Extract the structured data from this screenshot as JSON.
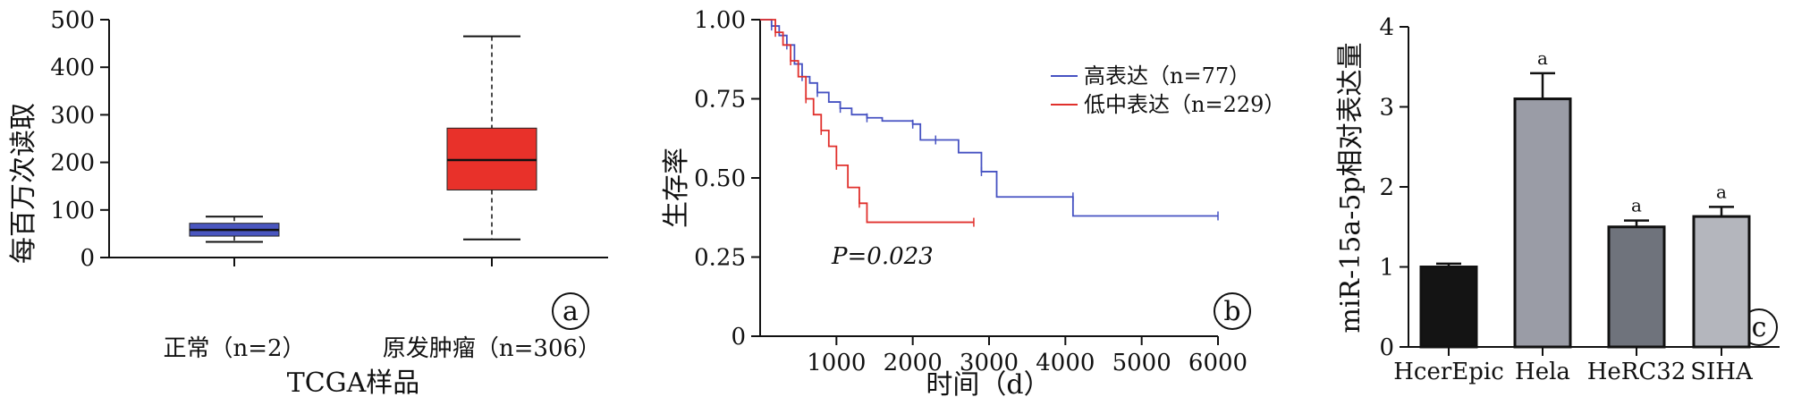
{
  "chart_data": [
    {
      "type": "box",
      "panel_label": "a",
      "ylabel": "每百万次读取",
      "xlabel": "TCGA样品",
      "ylim": [
        0,
        500
      ],
      "yticks": [
        0,
        100,
        200,
        300,
        400,
        500
      ],
      "categories": [
        "正常（n=2）",
        "原发肿瘤（n=306）"
      ],
      "boxes": [
        {
          "name": "正常（n=2）",
          "min": 33,
          "q1": 45,
          "median": 58,
          "q3": 72,
          "max": 86,
          "color": "#4a56c0"
        },
        {
          "name": "原发肿瘤（n=306）",
          "min": 38,
          "q1": 142,
          "median": 205,
          "q3": 272,
          "max": 465,
          "color": "#e8312a"
        }
      ]
    },
    {
      "type": "line",
      "subtype": "kaplan-meier",
      "panel_label": "b",
      "ylabel": "生存率",
      "xlabel": "时间（d）",
      "xlim": [
        0,
        6000
      ],
      "ylim": [
        0,
        1.0
      ],
      "xticks": [
        1000,
        2000,
        3000,
        4000,
        5000,
        6000
      ],
      "yticks": [
        "0",
        "0.25",
        "0.50",
        "0.75",
        "1.00"
      ],
      "annotation": "P=0.023",
      "legend_position": "top-right",
      "series": [
        {
          "name": "高表达（n=77）",
          "color": "#4652c2",
          "points": [
            [
              0,
              1.0
            ],
            [
              150,
              0.98
            ],
            [
              250,
              0.95
            ],
            [
              350,
              0.92
            ],
            [
              450,
              0.86
            ],
            [
              550,
              0.82
            ],
            [
              650,
              0.8
            ],
            [
              750,
              0.77
            ],
            [
              900,
              0.74
            ],
            [
              1050,
              0.72
            ],
            [
              1200,
              0.7
            ],
            [
              1400,
              0.69
            ],
            [
              1600,
              0.68
            ],
            [
              2000,
              0.67
            ],
            [
              2100,
              0.62
            ],
            [
              2300,
              0.62
            ],
            [
              2600,
              0.58
            ],
            [
              2900,
              0.52
            ],
            [
              3100,
              0.44
            ],
            [
              4100,
              0.44
            ],
            [
              4100,
              0.38
            ],
            [
              6000,
              0.38
            ]
          ]
        },
        {
          "name": "低中表达（n=229）",
          "color": "#e0302c",
          "points": [
            [
              0,
              1.0
            ],
            [
              200,
              0.96
            ],
            [
              300,
              0.92
            ],
            [
              400,
              0.87
            ],
            [
              500,
              0.82
            ],
            [
              600,
              0.75
            ],
            [
              700,
              0.7
            ],
            [
              800,
              0.65
            ],
            [
              900,
              0.6
            ],
            [
              1000,
              0.54
            ],
            [
              1150,
              0.47
            ],
            [
              1300,
              0.42
            ],
            [
              1400,
              0.36
            ],
            [
              2800,
              0.36
            ]
          ]
        }
      ]
    },
    {
      "type": "bar",
      "panel_label": "c",
      "ylabel": "miR-15a-5p相对表达量",
      "ylim": [
        0,
        4
      ],
      "yticks": [
        0,
        1,
        2,
        3,
        4
      ],
      "categories": [
        "HcerEpic",
        "Hela",
        "HeRC32",
        "SIHA"
      ],
      "values": [
        1.0,
        3.1,
        1.5,
        1.63
      ],
      "errors": [
        0.04,
        0.32,
        0.08,
        0.12
      ],
      "significance": [
        "",
        "a",
        "a",
        "a"
      ],
      "colors": [
        "#141414",
        "#9a9ca6",
        "#6f737c",
        "#b4b6bd"
      ]
    }
  ]
}
